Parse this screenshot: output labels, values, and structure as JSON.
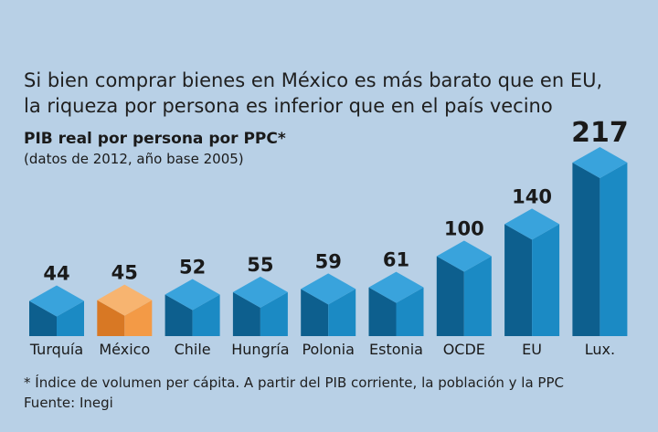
{
  "headline": {
    "line1": "Si bien comprar bienes en México es más barato que en EU,",
    "line2": "la riqueza por persona es inferior que en el país vecino"
  },
  "subtitle": "PIB real por persona por PPC*",
  "note": "(datos de 2012,  año base 2005)",
  "footer": {
    "footnote": "* Índice de volumen per cápita. A partir del PIB corriente, la población y la PPC",
    "source": "Fuente: Inegi"
  },
  "colors": {
    "background": "#b8d0e6",
    "bar_front": "#1b8ac4",
    "bar_side": "#0d5f8e",
    "bar_top": "#39a3dc",
    "highlight_front": "#f39a46",
    "highlight_side": "#d87824",
    "highlight_top": "#f7b470"
  },
  "chart_data": {
    "type": "bar",
    "categories": [
      "Turquía",
      "México",
      "Chile",
      "Hungría",
      "Polonia",
      "Estonia",
      "OCDE",
      "EU",
      "Lux."
    ],
    "values": [
      44,
      45,
      52,
      55,
      59,
      61,
      100,
      140,
      217
    ],
    "highlight": "México",
    "title": "PIB real por persona por PPC*",
    "xlabel": "",
    "ylabel": "",
    "grid": false
  }
}
